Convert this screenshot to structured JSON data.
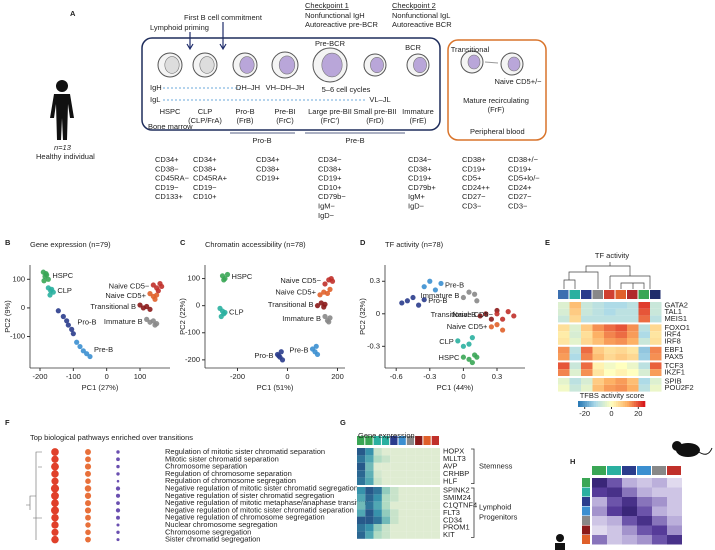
{
  "panel_a": {
    "panel": "A",
    "commitment": "First B cell commitment",
    "priming": "Lymphoid priming",
    "checkpoints": [
      {
        "title": "Checkpoint 1",
        "lines": [
          "Nonfunctional IgH",
          "Autoreactive pre-BCR"
        ]
      },
      {
        "title": "Checkpoint 2",
        "lines": [
          "Nonfunctional IgL",
          "Autoreactive BCR"
        ]
      }
    ],
    "receptors": [
      "Pre-BCR",
      "BCR"
    ],
    "chains": [
      "IgH",
      "IgL"
    ],
    "recombination": [
      "DH–JH",
      "VH–DH–JH",
      "5–6 cell cycles",
      "VL–JL"
    ],
    "stages": [
      {
        "name": "HSPC"
      },
      {
        "name": "CLP",
        "sub": "(CLP/FrA)"
      },
      {
        "name": "Pro-B",
        "sub": "(FrB)"
      },
      {
        "name": "Pre-BI",
        "sub": "(FrC)"
      },
      {
        "name": "Large pre-BII",
        "sub": "(FrC′)"
      },
      {
        "name": "Small pre-BII",
        "sub": "(FrD)"
      },
      {
        "name": "Immature",
        "sub": "(FrE)"
      }
    ],
    "blood_stages": [
      "Transitional",
      "Naive CD5+/−",
      "Mature recirculating",
      "(FrF)"
    ],
    "compartments": [
      "Bone marrow",
      "Peripheral blood"
    ],
    "groups": [
      "Pro-B",
      "Pre-B"
    ],
    "donor": {
      "n": "n=13",
      "label": "Healthy individual"
    },
    "markers": [
      [
        "CD34+",
        "CD38−",
        "CD45RA−",
        "CD19−",
        "CD133+"
      ],
      [
        "CD34+",
        "CD38+",
        "CD45RA+",
        "CD19−",
        "CD10+"
      ],
      [
        "CD34+",
        "CD38+",
        "CD19+"
      ],
      [
        "CD34−",
        "CD38+",
        "CD19+",
        "CD10+",
        "CD79b−",
        "IgM−",
        "IgD−"
      ],
      [
        "CD34−",
        "CD38+",
        "CD19+",
        "CD79b+",
        "IgM+",
        "IgD−"
      ],
      [
        "CD38+",
        "CD19+",
        "CD5+",
        "CD24++",
        "CD27−",
        "CD3−"
      ],
      [
        "CD38+/−",
        "CD19+",
        "CD5+lo/−",
        "CD24+",
        "CD27−",
        "CD3−"
      ]
    ]
  },
  "chart_data": [
    {
      "type": "scatter",
      "panel": "B",
      "title": "Gene expression (n=79)",
      "x_label": "PC1 (27%)",
      "y_label": "PC2 (9%)",
      "xlim": [
        -230,
        190
      ],
      "xticks": [
        -200,
        -100,
        0,
        100
      ],
      "ylim": [
        -210,
        150
      ],
      "yticks": [
        -100,
        0,
        100
      ],
      "series": [
        {
          "name": "HSPC",
          "color": "#3aa655",
          "x": [
            -190,
            -185,
            -180,
            -175,
            -188,
            -182
          ],
          "y": [
            125,
            110,
            115,
            100,
            95,
            120
          ]
        },
        {
          "name": "CLP",
          "color": "#2ab0a0",
          "x": [
            -175,
            -168,
            -160,
            -170,
            -165
          ],
          "y": [
            70,
            60,
            55,
            45,
            65
          ]
        },
        {
          "name": "Pro-B",
          "color": "#2a3c8c",
          "x": [
            -145,
            -130,
            -120,
            -115,
            -105,
            -100
          ],
          "y": [
            -10,
            -30,
            -45,
            -60,
            -75,
            -90
          ]
        },
        {
          "name": "Pre-B",
          "color": "#3b8fd0",
          "x": [
            -90,
            -80,
            -70,
            -60,
            -50
          ],
          "y": [
            -120,
            -135,
            -150,
            -160,
            -170
          ]
        },
        {
          "name": "Immature B",
          "color": "#888888",
          "x": [
            120,
            130,
            140,
            145,
            150
          ],
          "y": [
            -40,
            -50,
            -45,
            -60,
            -55
          ]
        },
        {
          "name": "Transitional B",
          "color": "#8b1a1a",
          "x": [
            100,
            110,
            120,
            130
          ],
          "y": [
            10,
            0,
            5,
            -5
          ]
        },
        {
          "name": "Naive CD5+",
          "color": "#e0602a",
          "x": [
            130,
            140,
            150,
            145
          ],
          "y": [
            50,
            40,
            45,
            30
          ]
        },
        {
          "name": "Naive CD5−",
          "color": "#c0302a",
          "x": [
            140,
            150,
            160,
            155,
            165
          ],
          "y": [
            80,
            70,
            85,
            60,
            75
          ]
        }
      ]
    },
    {
      "type": "scatter",
      "panel": "C",
      "title": "Chromatin accessibility (n=78)",
      "x_label": "PC1 (51%)",
      "y_label": "PC2 (22%)",
      "xlim": [
        -330,
        230
      ],
      "xticks": [
        -200,
        0,
        200
      ],
      "ylim": [
        -230,
        150
      ],
      "yticks": [
        -200,
        -100,
        0,
        100
      ],
      "series": [
        {
          "name": "HSPC",
          "color": "#3aa655",
          "x": [
            -260,
            -250,
            -240,
            -255
          ],
          "y": [
            110,
            100,
            115,
            95
          ]
        },
        {
          "name": "CLP",
          "color": "#2ab0a0",
          "x": [
            -270,
            -260,
            -255,
            -265,
            -250
          ],
          "y": [
            -10,
            -20,
            -30,
            -40,
            -25
          ]
        },
        {
          "name": "Pro-B",
          "color": "#2a3c8c",
          "x": [
            -40,
            -30,
            -20,
            -25,
            -35
          ],
          "y": [
            -180,
            -190,
            -200,
            -170,
            -185
          ]
        },
        {
          "name": "Pre-B",
          "color": "#3b8fd0",
          "x": [
            100,
            110,
            120,
            115
          ],
          "y": [
            -160,
            -170,
            -180,
            -150
          ]
        },
        {
          "name": "Immature B",
          "color": "#888888",
          "x": [
            150,
            160,
            170,
            165
          ],
          "y": [
            -40,
            -55,
            -45,
            -60
          ]
        },
        {
          "name": "Transitional B",
          "color": "#8b1a1a",
          "x": [
            120,
            135,
            145,
            150
          ],
          "y": [
            0,
            10,
            -5,
            5
          ]
        },
        {
          "name": "Naive CD5+",
          "color": "#e0602a",
          "x": [
            130,
            145,
            160,
            170
          ],
          "y": [
            40,
            50,
            45,
            60
          ]
        },
        {
          "name": "Naive CD5−",
          "color": "#c0302a",
          "x": [
            150,
            165,
            180,
            175
          ],
          "y": [
            80,
            95,
            90,
            100
          ]
        }
      ]
    },
    {
      "type": "scatter",
      "panel": "D",
      "title": "TF activity (n=78)",
      "x_label": "PC1 (44%)",
      "y_label": "PC2 (32%)",
      "xlim": [
        -0.7,
        0.55
      ],
      "xticks": [
        -0.6,
        -0.3,
        0,
        0.3
      ],
      "ylim": [
        -0.5,
        0.45
      ],
      "yticks": [
        -0.3,
        0,
        0.3
      ],
      "series": [
        {
          "name": "HSPC",
          "color": "#3aa655",
          "x": [
            0.0,
            0.05,
            0.1,
            0.08,
            0.12
          ],
          "y": [
            -0.4,
            -0.42,
            -0.38,
            -0.45,
            -0.4
          ]
        },
        {
          "name": "CLP",
          "color": "#2ab0a0",
          "x": [
            -0.05,
            0.0,
            0.05,
            0.08
          ],
          "y": [
            -0.25,
            -0.3,
            -0.28,
            -0.22
          ]
        },
        {
          "name": "Pro-B",
          "color": "#2a3c8c",
          "x": [
            -0.55,
            -0.5,
            -0.45,
            -0.4,
            -0.35
          ],
          "y": [
            0.1,
            0.12,
            0.15,
            0.08,
            0.13
          ]
        },
        {
          "name": "Pre-B",
          "color": "#3b8fd0",
          "x": [
            -0.35,
            -0.3,
            -0.25,
            -0.2
          ],
          "y": [
            0.25,
            0.3,
            0.22,
            0.28
          ]
        },
        {
          "name": "Immature B",
          "color": "#888888",
          "x": [
            0.0,
            0.05,
            0.1,
            0.12
          ],
          "y": [
            0.15,
            0.2,
            0.18,
            0.12
          ]
        },
        {
          "name": "Transitional B",
          "color": "#8b1a1a",
          "x": [
            0.15,
            0.2,
            0.25,
            0.3
          ],
          "y": [
            -0.02,
            0.0,
            -0.05,
            0.03
          ]
        },
        {
          "name": "Naive CD5+",
          "color": "#e0602a",
          "x": [
            0.25,
            0.3,
            0.35
          ],
          "y": [
            -0.12,
            -0.1,
            -0.15
          ]
        },
        {
          "name": "Naive CD5−",
          "color": "#c0302a",
          "x": [
            0.3,
            0.35,
            0.4,
            0.45
          ],
          "y": [
            0.0,
            -0.05,
            0.02,
            -0.02
          ]
        }
      ]
    },
    {
      "type": "heatmap",
      "panel": "E",
      "title": "TF activity",
      "rows": [
        "GATA2",
        "TAL1",
        "MEIS1",
        "FOXO1",
        "IRF4",
        "IRF8",
        "EBF1",
        "PAX5",
        "TCF3",
        "IKZF1",
        "SPIB",
        "POU2F2"
      ],
      "column_colors": [
        "#3b6fb0",
        "#2ab0a0",
        "#2a3c8c",
        "#888888",
        "#d04030",
        "#e0602a",
        "#b02a2a",
        "#3aa655",
        "#1f2d6c"
      ],
      "values": [
        [
          -5,
          10,
          -8,
          -10,
          -12,
          -12,
          -10,
          22,
          -8
        ],
        [
          -6,
          8,
          -8,
          -10,
          -12,
          -10,
          -10,
          20,
          -8
        ],
        [
          -8,
          6,
          -10,
          -10,
          -10,
          -10,
          -10,
          18,
          -10
        ],
        [
          5,
          -5,
          8,
          15,
          18,
          20,
          15,
          -10,
          6
        ],
        [
          3,
          -6,
          5,
          12,
          16,
          18,
          14,
          -12,
          4
        ],
        [
          4,
          -4,
          6,
          10,
          14,
          15,
          12,
          -8,
          5
        ],
        [
          15,
          -10,
          18,
          8,
          5,
          6,
          4,
          -15,
          16
        ],
        [
          14,
          -12,
          16,
          10,
          6,
          8,
          6,
          -14,
          15
        ],
        [
          20,
          -8,
          18,
          2,
          -2,
          0,
          -3,
          -10,
          19
        ],
        [
          16,
          -5,
          15,
          4,
          0,
          2,
          0,
          -6,
          14
        ],
        [
          -4,
          -10,
          -6,
          8,
          12,
          14,
          10,
          -12,
          -5
        ],
        [
          -2,
          -8,
          -4,
          10,
          14,
          15,
          12,
          -10,
          -3
        ]
      ],
      "zlim": [
        -25,
        25
      ],
      "colors": [
        "#2c7bb6",
        "#abd9e9",
        "#ffffbf",
        "#fdae61",
        "#d7191c"
      ],
      "colorbar": {
        "title": "TFBS activity score",
        "ticks": [
          -20,
          0,
          20
        ]
      }
    },
    {
      "type": "dotplot",
      "panel": "F",
      "title": "Top biological pathways enriched over transitions",
      "categories": [
        "Regulation of mitotic sister chromatid separation",
        "Mitotic sister chromatid separation",
        "Chromosome separation",
        "Regulation of chromosome separation",
        "Regulation of chromosome segregation",
        "Negative regulation of mitotic sister chromatid segregation",
        "Negative regulation of sister chromatid segregation",
        "Negative regulation of mitotic metaphase/anaphase transition",
        "Negative regulation of mitotic sister chromatid separation",
        "Negative regulation of chromosome segregation",
        "Nuclear chromosome segregation",
        "Chromosome segregation",
        "Sister chromatid segregation"
      ],
      "series": [
        {
          "color": "#e0402a",
          "values": [
            4.5,
            4.3,
            4.6,
            4.4,
            4.2,
            4.8,
            4.6,
            4.5,
            4.7,
            4.4,
            4.3,
            4.2,
            4.4
          ]
        },
        {
          "color": "#e8703a",
          "values": [
            3.5,
            3.4,
            3.6,
            3.5,
            3.3,
            3.8,
            3.7,
            3.5,
            3.6,
            3.4,
            3.2,
            3.3,
            3.4
          ]
        },
        {
          "color": "#6a4fb0",
          "values": [
            2,
            2.2,
            2,
            2,
            1.5,
            2.5,
            2.4,
            2.2,
            2.5,
            2.3,
            1.8,
            2,
            1.8
          ]
        }
      ]
    },
    {
      "type": "heatmap",
      "panel": "G",
      "title": "Gene expression",
      "rows": [
        "HOPX",
        "MLLT3",
        "AVP",
        "CRHBP",
        "HLF",
        "SPINK2",
        "SMIM24",
        "C1QTNF4",
        "FLT3",
        "CD34",
        "PROM1",
        "KIT"
      ],
      "row_groups": [
        {
          "label_lines": [
            "Stemness"
          ]
        },
        {
          "label_lines": [
            "Lymphoid",
            "Progenitors"
          ]
        }
      ],
      "column_colors": [
        "#3aa655",
        "#3aa655",
        "#2ab0a0",
        "#2ab0a0",
        "#2a3c8c",
        "#3b8fd0",
        "#888888",
        "#8b1a1a",
        "#e0602a",
        "#c0302a"
      ],
      "values": [
        [
          0.9,
          0.7,
          0.2,
          0.1,
          0.1,
          0.1,
          0.1,
          0.1,
          0.1,
          0.1
        ],
        [
          0.8,
          0.6,
          0.3,
          0.2,
          0.1,
          0.1,
          0.1,
          0.1,
          0.1,
          0.1
        ],
        [
          0.9,
          0.5,
          0.1,
          0.1,
          0.1,
          0.1,
          0.1,
          0.1,
          0.1,
          0.1
        ],
        [
          0.85,
          0.55,
          0.15,
          0.1,
          0.1,
          0.1,
          0.1,
          0.1,
          0.1,
          0.1
        ],
        [
          0.8,
          0.6,
          0.2,
          0.1,
          0.1,
          0.1,
          0.1,
          0.1,
          0.1,
          0.1
        ],
        [
          0.7,
          0.9,
          0.8,
          0.4,
          0.2,
          0.1,
          0.1,
          0.1,
          0.1,
          0.1
        ],
        [
          0.6,
          0.85,
          0.7,
          0.3,
          0.2,
          0.1,
          0.1,
          0.1,
          0.1,
          0.1
        ],
        [
          0.5,
          0.8,
          0.6,
          0.3,
          0.1,
          0.1,
          0.1,
          0.1,
          0.1,
          0.1
        ],
        [
          0.6,
          0.9,
          0.7,
          0.4,
          0.2,
          0.1,
          0.1,
          0.1,
          0.1,
          0.1
        ],
        [
          0.9,
          0.9,
          0.8,
          0.5,
          0.2,
          0.1,
          0.1,
          0.1,
          0.1,
          0.1
        ],
        [
          0.8,
          0.7,
          0.4,
          0.2,
          0.1,
          0.1,
          0.1,
          0.1,
          0.1,
          0.1
        ],
        [
          0.85,
          0.6,
          0.3,
          0.2,
          0.1,
          0.1,
          0.1,
          0.1,
          0.1,
          0.1
        ]
      ],
      "zlim": [
        0,
        1
      ],
      "colors": [
        "#f7f4d9",
        "#a8d8c0",
        "#3a9bb0",
        "#1f3d7a"
      ]
    },
    {
      "type": "heatmap",
      "panel": "H",
      "column_colors": [
        "#3aa655",
        "#2ab0a0",
        "#2a3c8c",
        "#3b8fd0",
        "#888888",
        "#c0302a"
      ],
      "row_colors": [
        "#3aa655",
        "#2ab0a0",
        "#2a3c8c",
        "#3b8fd0",
        "#888888",
        "#8b1a1a",
        "#e0602a"
      ],
      "values": [
        [
          0.9,
          0.6,
          0.3,
          0.2,
          0.3,
          0.1
        ],
        [
          0.7,
          0.8,
          0.5,
          0.3,
          0.2,
          0.2
        ],
        [
          0.3,
          0.6,
          0.8,
          0.5,
          0.4,
          0.2
        ],
        [
          0.4,
          0.7,
          0.9,
          0.6,
          0.3,
          0.2
        ],
        [
          0.2,
          0.3,
          0.6,
          0.8,
          0.5,
          0.3
        ],
        [
          0.1,
          0.2,
          0.4,
          0.6,
          0.7,
          0.4
        ],
        [
          0.5,
          0.2,
          0.3,
          0.4,
          0.6,
          0.8
        ]
      ],
      "zlim": [
        0,
        1
      ],
      "colors": [
        "#f3f0f8",
        "#b5a8d8",
        "#5a3f9e",
        "#2d1b69"
      ]
    }
  ]
}
